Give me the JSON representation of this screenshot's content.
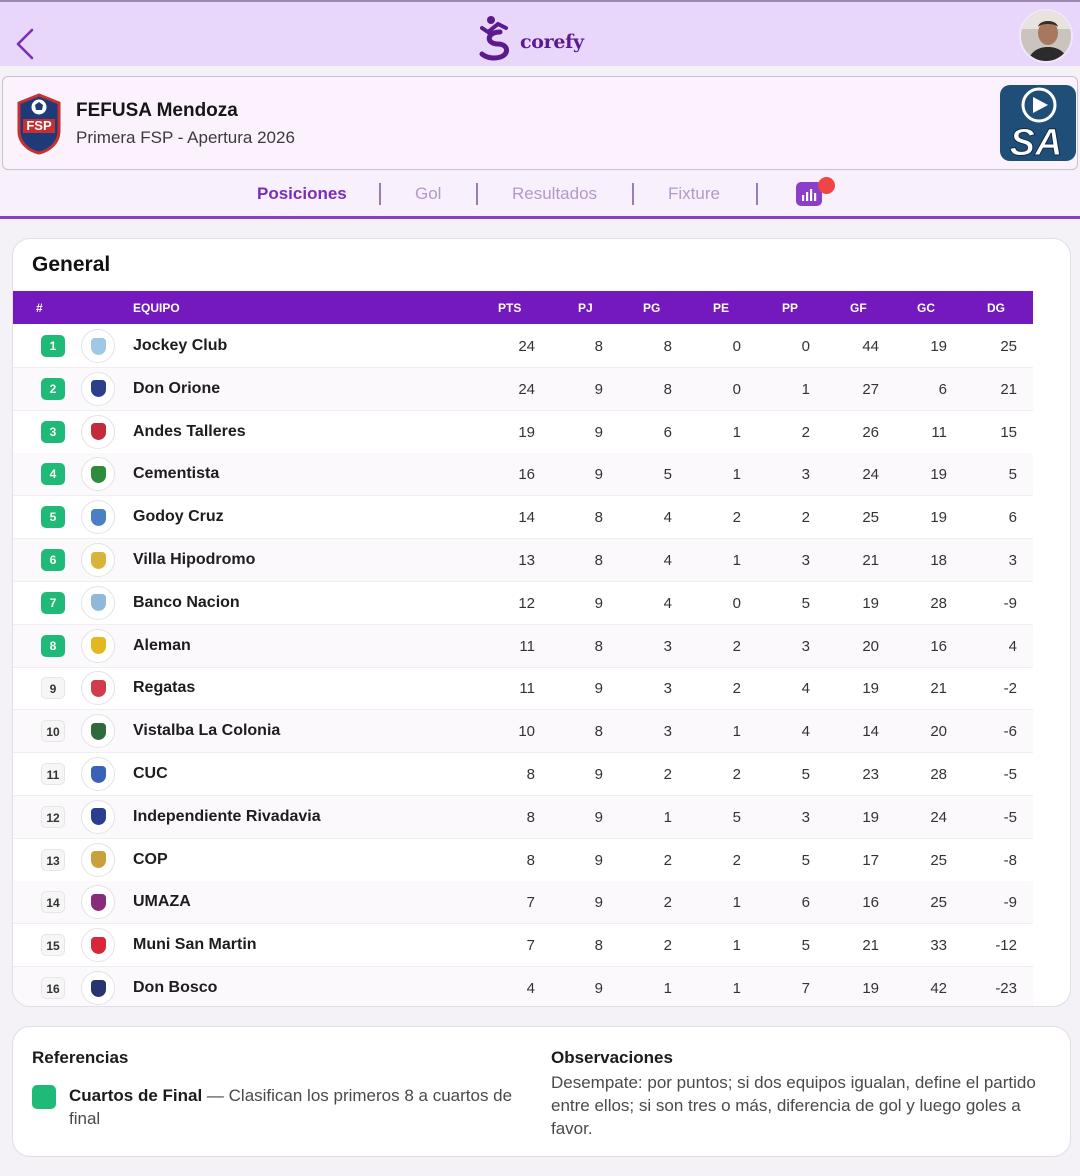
{
  "app": {
    "logo_text": "corefy",
    "logo_mark_letter": "S"
  },
  "league": {
    "name": "FEFUSA Mendoza",
    "subtitle": "Primera FSP - Apertura 2026",
    "badge_text": "FSP",
    "sponsor_text": "SA"
  },
  "tabs": [
    {
      "label": "Posiciones",
      "active": true
    },
    {
      "label": "Gol",
      "active": false
    },
    {
      "label": "Resultados",
      "active": false
    },
    {
      "label": "Fixture",
      "active": false
    }
  ],
  "standings": {
    "title": "General",
    "columns": [
      "#",
      "EQUIPO",
      "PTS",
      "PJ",
      "PG",
      "PE",
      "PP",
      "GF",
      "GC",
      "DG"
    ],
    "rows": [
      {
        "pos": "1",
        "team": "Jockey Club",
        "pts": "24",
        "pj": "8",
        "pg": "8",
        "pe": "0",
        "pp": "0",
        "gf": "44",
        "gc": "19",
        "dg": "25",
        "qualified": true,
        "crest_color": "#9fc7e6"
      },
      {
        "pos": "2",
        "team": "Don Orione",
        "pts": "24",
        "pj": "9",
        "pg": "8",
        "pe": "0",
        "pp": "1",
        "gf": "27",
        "gc": "6",
        "dg": "21",
        "qualified": true,
        "crest_color": "#2c3f8c"
      },
      {
        "pos": "3",
        "team": "Andes Talleres",
        "pts": "19",
        "pj": "9",
        "pg": "6",
        "pe": "1",
        "pp": "2",
        "gf": "26",
        "gc": "11",
        "dg": "15",
        "qualified": true,
        "crest_color": "#c42a3a"
      },
      {
        "pos": "4",
        "team": "Cementista",
        "pts": "16",
        "pj": "9",
        "pg": "5",
        "pe": "1",
        "pp": "3",
        "gf": "24",
        "gc": "19",
        "dg": "5",
        "qualified": true,
        "crest_color": "#2e8b3a"
      },
      {
        "pos": "5",
        "team": "Godoy Cruz",
        "pts": "14",
        "pj": "8",
        "pg": "4",
        "pe": "2",
        "pp": "2",
        "gf": "25",
        "gc": "19",
        "dg": "6",
        "qualified": true,
        "crest_color": "#4a7fc4"
      },
      {
        "pos": "6",
        "team": "Villa Hipodromo",
        "pts": "13",
        "pj": "8",
        "pg": "4",
        "pe": "1",
        "pp": "3",
        "gf": "21",
        "gc": "18",
        "dg": "3",
        "qualified": true,
        "crest_color": "#d9b43a"
      },
      {
        "pos": "7",
        "team": "Banco Nacion",
        "pts": "12",
        "pj": "9",
        "pg": "4",
        "pe": "0",
        "pp": "5",
        "gf": "19",
        "gc": "28",
        "dg": "-9",
        "qualified": true,
        "crest_color": "#8fb8d9"
      },
      {
        "pos": "8",
        "team": "Aleman",
        "pts": "11",
        "pj": "8",
        "pg": "3",
        "pe": "2",
        "pp": "3",
        "gf": "20",
        "gc": "16",
        "dg": "4",
        "qualified": true,
        "crest_color": "#e3b81f"
      },
      {
        "pos": "9",
        "team": "Regatas",
        "pts": "11",
        "pj": "9",
        "pg": "3",
        "pe": "2",
        "pp": "4",
        "gf": "19",
        "gc": "21",
        "dg": "-2",
        "qualified": false,
        "crest_color": "#d23b4a"
      },
      {
        "pos": "10",
        "team": "Vistalba La Colonia",
        "pts": "10",
        "pj": "8",
        "pg": "3",
        "pe": "1",
        "pp": "4",
        "gf": "14",
        "gc": "20",
        "dg": "-6",
        "qualified": false,
        "crest_color": "#2f6b3a"
      },
      {
        "pos": "11",
        "team": "CUC",
        "pts": "8",
        "pj": "9",
        "pg": "2",
        "pe": "2",
        "pp": "5",
        "gf": "23",
        "gc": "28",
        "dg": "-5",
        "qualified": false,
        "crest_color": "#3a63b8"
      },
      {
        "pos": "12",
        "team": "Independiente Rivadavia",
        "pts": "8",
        "pj": "9",
        "pg": "1",
        "pe": "5",
        "pp": "3",
        "gf": "19",
        "gc": "24",
        "dg": "-5",
        "qualified": false,
        "crest_color": "#2a3d8f"
      },
      {
        "pos": "13",
        "team": "COP",
        "pts": "8",
        "pj": "9",
        "pg": "2",
        "pe": "2",
        "pp": "5",
        "gf": "17",
        "gc": "25",
        "dg": "-8",
        "qualified": false,
        "crest_color": "#c9a13b"
      },
      {
        "pos": "14",
        "team": "UMAZA",
        "pts": "7",
        "pj": "9",
        "pg": "2",
        "pe": "1",
        "pp": "6",
        "gf": "16",
        "gc": "25",
        "dg": "-9",
        "qualified": false,
        "crest_color": "#8a2a7a"
      },
      {
        "pos": "15",
        "team": "Muni San Martin",
        "pts": "7",
        "pj": "8",
        "pg": "2",
        "pe": "1",
        "pp": "5",
        "gf": "21",
        "gc": "33",
        "dg": "-12",
        "qualified": false,
        "crest_color": "#d8263a"
      },
      {
        "pos": "16",
        "team": "Don Bosco",
        "pts": "4",
        "pj": "9",
        "pg": "1",
        "pe": "1",
        "pp": "7",
        "gf": "19",
        "gc": "42",
        "dg": "-23",
        "qualified": false,
        "crest_color": "#26356e"
      }
    ]
  },
  "references": {
    "title": "Referencias",
    "item_label": "Cuartos de Final",
    "item_description": " — Clasifican los primeros 8 a cuartos de final",
    "item_color": "#1fba78"
  },
  "observations": {
    "title": "Observaciones",
    "text": "Desempate: por puntos; si dos equipos igualan, define el partido entre ellos; si son tres o más, diferencia de gol y luego goles a favor."
  },
  "colors": {
    "accent": "#7419bd",
    "qualified": "#1fba78",
    "header_bg": "#e8d6fb"
  }
}
